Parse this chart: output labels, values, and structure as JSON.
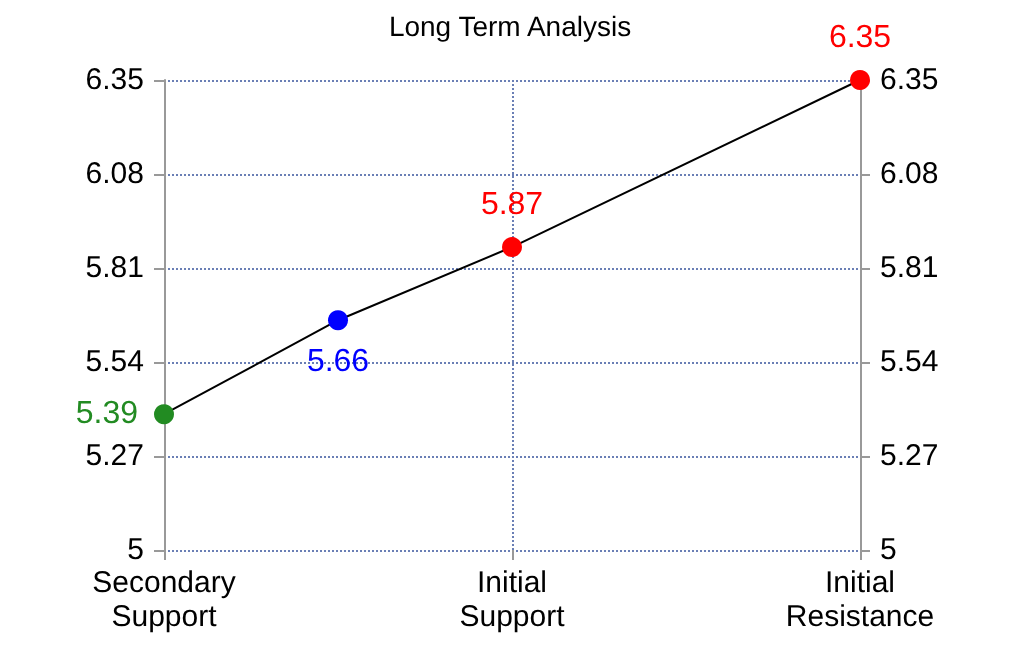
{
  "chart_data": {
    "type": "line",
    "title": "Long Term Analysis",
    "categories": [
      "Secondary\nSupport",
      null,
      "Initial\nSupport",
      null,
      "Initial\nResistance"
    ],
    "series": [
      {
        "color": "#000000",
        "colors": [
          "#228b22",
          "#0000ff",
          "#ff0000",
          null,
          "#ff0000"
        ],
        "values": [
          5.39,
          5.66,
          5.87,
          null,
          6.35
        ]
      }
    ],
    "data_labels": true,
    "marker": "circle",
    "ylim": [
      5,
      6.35
    ],
    "yticks": [
      5,
      5.27,
      5.54,
      5.81,
      6.08,
      6.35
    ],
    "y2lim": [
      5,
      6.35
    ],
    "y2ticks": [
      5,
      5.27,
      5.54,
      5.81,
      6.08,
      6.35
    ],
    "grid": true
  }
}
